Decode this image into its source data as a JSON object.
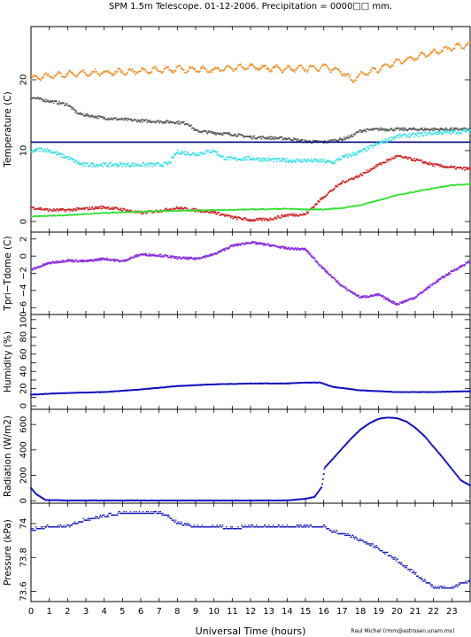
{
  "title": "SPM 1.5m Telescope. 01-12-2006. Precipitation = 0000□□ mm.",
  "xlabel": "Universal Time (hours)",
  "credit": "Raul Michel (rmm@astrosen.unam.mx)",
  "x_ticks": [
    0,
    1,
    2,
    3,
    4,
    5,
    6,
    7,
    8,
    9,
    10,
    11,
    12,
    13,
    14,
    15,
    16,
    17,
    18,
    19,
    20,
    21,
    22,
    23
  ],
  "colors": {
    "orange": "#f0902a",
    "gray": "#555555",
    "navy": "#00007a",
    "cyan": "#33e0e8",
    "red": "#d02020",
    "green": "#30e030",
    "purple": "#8a2be2",
    "blue": "#1010c0"
  },
  "chart_data": [
    {
      "type": "line",
      "panel": "temperature",
      "ylabel": "Temperature (C)",
      "xlim": [
        0,
        24
      ],
      "ylim": [
        -1.5,
        27.5
      ],
      "y_ticks": [
        0,
        10,
        20
      ],
      "series": [
        {
          "color": "orange",
          "x": [
            0,
            2,
            4,
            6,
            8,
            10,
            12,
            14,
            15,
            16,
            17,
            17.5,
            18,
            19,
            20,
            21,
            22,
            23,
            24
          ],
          "values": [
            20.2,
            20.8,
            21.0,
            21.2,
            21.5,
            21.4,
            21.8,
            21.5,
            21.6,
            21.8,
            21.2,
            19.9,
            20.6,
            21.5,
            22.5,
            23.2,
            23.8,
            24.5,
            25.0
          ]
        },
        {
          "color": "gray",
          "x": [
            0,
            1,
            2,
            2.6,
            3,
            4,
            5,
            6,
            7,
            8,
            8.6,
            9,
            10,
            11,
            11.5,
            12,
            13,
            14,
            15,
            16,
            17,
            17.5,
            18,
            19,
            20,
            22,
            24
          ],
          "values": [
            17.5,
            17.0,
            16.5,
            15.2,
            15.0,
            14.6,
            14.4,
            14.2,
            14.1,
            14.0,
            13.8,
            12.8,
            12.5,
            12.3,
            12.1,
            11.9,
            11.8,
            11.7,
            11.3,
            11.2,
            11.6,
            12.0,
            12.8,
            13.0,
            13.0,
            13.0,
            13.0
          ]
        },
        {
          "color": "navy",
          "x": [
            0,
            24
          ],
          "values": [
            11.2,
            11.2
          ]
        },
        {
          "color": "cyan",
          "x": [
            0,
            0.5,
            1,
            1.5,
            2,
            2.8,
            4,
            5,
            6,
            7,
            7.5,
            8,
            9,
            10,
            10.5,
            11,
            12,
            13,
            14,
            15,
            16,
            16.5,
            17,
            18,
            19,
            20,
            21,
            22,
            23,
            24
          ],
          "values": [
            9.8,
            10.2,
            10.0,
            9.5,
            9.0,
            8.0,
            8.0,
            8.0,
            8.0,
            8.0,
            8.1,
            9.8,
            9.5,
            10.0,
            9.0,
            8.8,
            8.9,
            8.7,
            8.6,
            8.6,
            8.5,
            8.3,
            9.0,
            9.8,
            11.0,
            12.0,
            12.2,
            12.5,
            12.6,
            12.8
          ]
        },
        {
          "color": "red",
          "x": [
            0,
            1,
            2,
            3,
            4,
            5,
            6,
            7,
            8,
            9,
            10,
            11,
            12,
            13,
            14,
            15,
            16,
            17,
            18,
            19,
            20,
            21,
            22,
            23,
            24
          ],
          "values": [
            2.0,
            1.6,
            1.6,
            1.8,
            2.0,
            1.7,
            1.2,
            1.5,
            1.9,
            1.6,
            1.3,
            0.6,
            0.2,
            0.3,
            0.9,
            1.0,
            3.5,
            5.5,
            6.5,
            8.0,
            9.2,
            8.7,
            8.0,
            7.6,
            7.4
          ]
        },
        {
          "color": "green",
          "x": [
            0,
            2,
            4,
            6,
            8,
            10,
            12,
            14,
            15,
            16,
            17,
            18,
            19,
            20,
            21,
            22,
            23,
            24
          ],
          "values": [
            0.7,
            0.9,
            1.2,
            1.4,
            1.5,
            1.6,
            1.7,
            1.8,
            1.7,
            1.7,
            1.9,
            2.3,
            3.0,
            3.7,
            4.2,
            4.7,
            5.1,
            5.3
          ]
        }
      ]
    },
    {
      "type": "scatter",
      "panel": "tdiff",
      "ylabel": "Tpri−Tdome (C)",
      "xlim": [
        0,
        24
      ],
      "ylim": [
        -6.8,
        2.8
      ],
      "y_ticks": [
        -6,
        -4,
        -2,
        0,
        2
      ],
      "tick_labels": [
        "−6",
        "−4",
        "−2",
        "0",
        "2"
      ],
      "series": [
        {
          "color": "purple",
          "x": [
            0,
            0.5,
            1,
            2,
            3,
            4,
            5,
            6,
            7,
            8,
            9,
            10,
            11,
            12,
            13,
            14,
            15,
            16,
            17,
            18,
            19,
            20,
            21,
            22,
            23,
            24
          ],
          "values": [
            -1.6,
            -1.2,
            -0.8,
            -0.5,
            -0.6,
            -0.3,
            -0.6,
            0.2,
            0.1,
            -0.2,
            -0.3,
            0.2,
            1.2,
            1.6,
            1.3,
            0.9,
            0.8,
            -1.5,
            -3.5,
            -4.8,
            -4.5,
            -5.6,
            -4.8,
            -3.2,
            -1.8,
            -0.6
          ]
        }
      ]
    },
    {
      "type": "line",
      "panel": "humidity",
      "ylabel": "Humidity (%)",
      "xlim": [
        0,
        24
      ],
      "ylim": [
        -4,
        106
      ],
      "y_ticks": [
        0,
        10,
        20,
        30,
        40,
        50,
        60,
        70,
        80,
        90,
        100
      ],
      "tick_labels": [
        "0",
        "",
        "20",
        "",
        "40",
        "",
        "60",
        "",
        "80",
        "",
        "100"
      ],
      "series": [
        {
          "color": "blue",
          "x": [
            0,
            2,
            4,
            6,
            8,
            9,
            10,
            12,
            14,
            15,
            15.8,
            16.5,
            18,
            20,
            22,
            24
          ],
          "values": [
            13,
            15,
            16,
            19,
            23,
            24,
            25,
            26,
            26,
            27,
            27,
            22,
            18,
            16,
            16,
            17
          ]
        }
      ]
    },
    {
      "type": "line",
      "panel": "radiation",
      "ylabel": "Radiation (W/m2)",
      "xlim": [
        0,
        24
      ],
      "ylim": [
        -20,
        720
      ],
      "y_ticks": [
        0,
        200,
        400,
        600
      ],
      "series": [
        {
          "color": "blue",
          "x": [
            0,
            0.3,
            0.8,
            2,
            5,
            8,
            11,
            14,
            15,
            15.5,
            15.9,
            16.05,
            16.5,
            17,
            17.5,
            18,
            18.5,
            19,
            19.5,
            20,
            20.5,
            21,
            21.5,
            22,
            22.5,
            23,
            23.5,
            24
          ],
          "values": [
            100,
            50,
            5,
            2,
            2,
            2,
            2,
            2,
            15,
            30,
            110,
            260,
            330,
            410,
            490,
            560,
            610,
            645,
            655,
            650,
            625,
            575,
            510,
            425,
            340,
            250,
            160,
            120
          ]
        }
      ]
    },
    {
      "type": "scatter",
      "panel": "pressure",
      "ylabel": "Pressure (kPa)",
      "xlim": [
        0,
        24
      ],
      "ylim": [
        73.54,
        74.12
      ],
      "y_ticks": [
        73.6,
        73.8,
        74
      ],
      "tick_labels": [
        "73.6",
        "73.8",
        "74"
      ],
      "series": [
        {
          "color": "blue",
          "x": [
            0,
            1,
            2,
            2.5,
            3,
            4,
            5,
            6,
            7,
            7.5,
            8,
            9,
            10,
            11,
            12,
            13,
            14,
            15,
            16,
            16.5,
            17,
            18,
            19,
            20,
            21,
            22,
            23,
            24
          ],
          "values": [
            73.96,
            73.98,
            73.98,
            74.0,
            74.02,
            74.04,
            74.06,
            74.06,
            74.06,
            74.04,
            74.0,
            73.98,
            73.98,
            73.97,
            73.98,
            73.98,
            73.98,
            73.98,
            73.98,
            73.95,
            73.94,
            73.9,
            73.85,
            73.78,
            73.7,
            73.62,
            73.62,
            73.66
          ]
        }
      ]
    }
  ]
}
